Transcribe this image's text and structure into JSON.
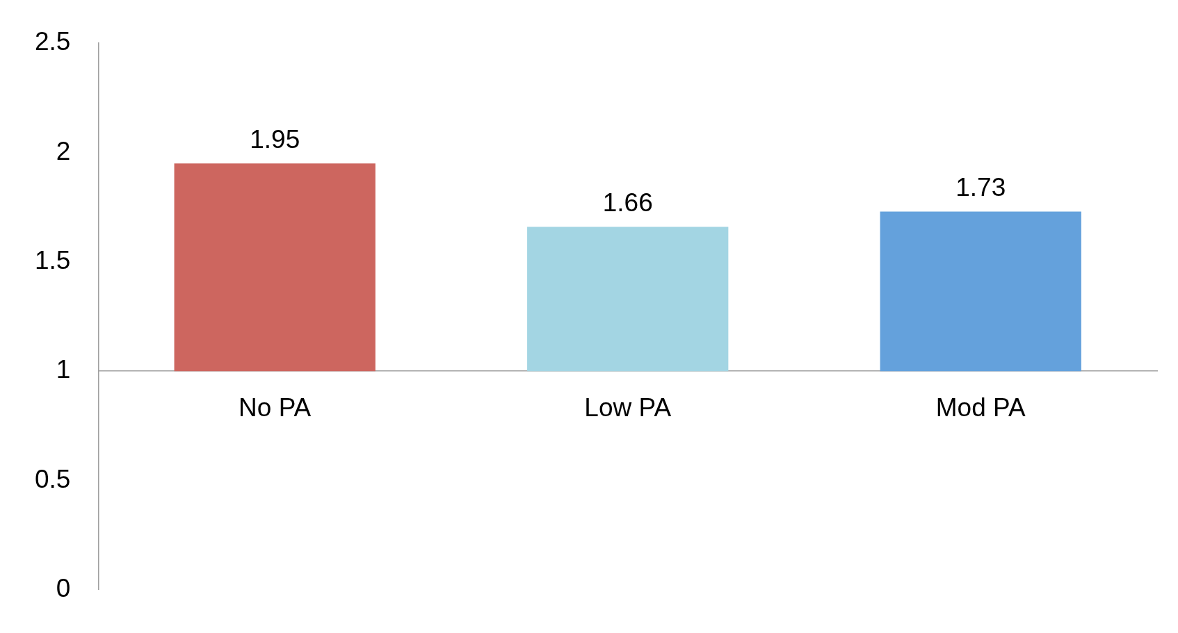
{
  "chart_data": {
    "type": "bar",
    "categories": [
      "No PA",
      "Low PA",
      "Mod PA"
    ],
    "base": [
      1,
      1,
      1
    ],
    "values": [
      0.95,
      0.66,
      0.73
    ],
    "value_labels": [
      "1.95",
      "1.66",
      "1.73"
    ],
    "colors": [
      "#cd665f",
      "#a3d5e3",
      "#64a1dc"
    ],
    "ylim": [
      0,
      2.5
    ],
    "yticks": [
      0,
      0.5,
      1,
      1.5,
      2,
      2.5
    ],
    "grid": false,
    "legend": false
  }
}
